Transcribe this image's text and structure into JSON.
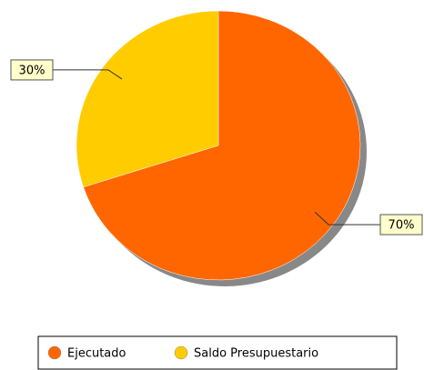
{
  "chart_data": {
    "type": "pie",
    "categories": [
      "Ejecutado",
      "Saldo Presupuestario"
    ],
    "values": [
      70,
      30
    ],
    "value_labels": [
      "70%",
      "30%"
    ],
    "colors": [
      "#ff6600",
      "#ffcc00"
    ],
    "legend": "bottom"
  }
}
